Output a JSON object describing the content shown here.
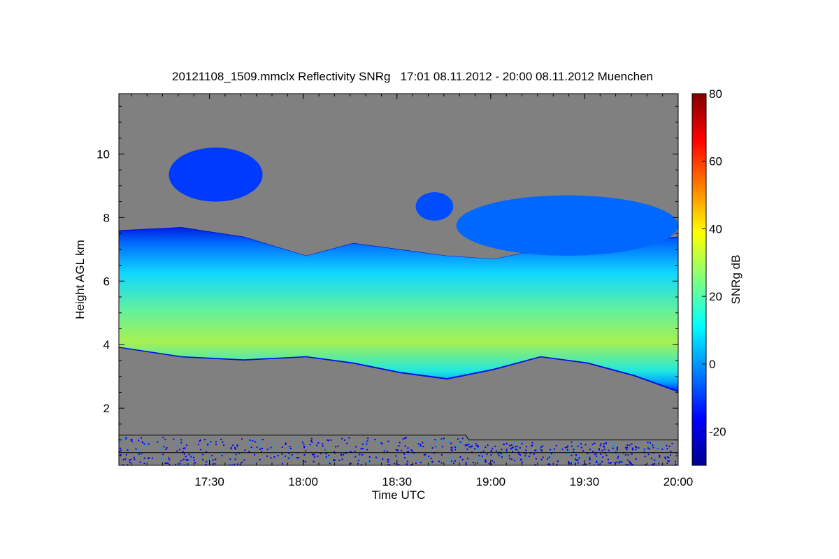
{
  "chart_data": {
    "type": "heatmap",
    "title": "20121108_1509.mmclx Reflectivity SNRg   17:01 08.11.2012 - 20:00 08.11.2012 Muenchen",
    "xlabel": "Time UTC",
    "ylabel": "Height AGL km",
    "colorbar_label": "SNRg dB",
    "x_range": [
      "17:01",
      "20:00"
    ],
    "x_ticks": [
      "17:30",
      "18:00",
      "18:30",
      "19:00",
      "19:30",
      "20:00"
    ],
    "x_tick_minutes": [
      29,
      59,
      89,
      119,
      149,
      179
    ],
    "ylim": [
      0.2,
      11.9
    ],
    "y_ticks": [
      2,
      4,
      6,
      8,
      10
    ],
    "clim": [
      -30,
      80
    ],
    "c_ticks": [
      -20,
      0,
      20,
      40,
      60,
      80
    ],
    "colormap": "jet",
    "background_color": "#808080",
    "main_cloud_layer": {
      "time_min": [
        0,
        20,
        40,
        60,
        75,
        90,
        105,
        120,
        135,
        150,
        165,
        179
      ],
      "top_km": [
        7.6,
        7.7,
        7.4,
        6.8,
        7.2,
        7.0,
        6.8,
        6.7,
        7.0,
        7.2,
        7.3,
        7.4
      ],
      "base_km": [
        3.9,
        3.6,
        3.5,
        3.6,
        3.4,
        3.1,
        2.9,
        3.2,
        3.6,
        3.4,
        3.0,
        2.5
      ],
      "peak_snr_db": [
        27,
        26,
        24,
        23,
        27,
        28,
        22,
        18,
        25,
        33,
        30,
        20
      ]
    },
    "upper_cloud_patches": [
      {
        "time_min": [
          16,
          46
        ],
        "height_km": [
          8.5,
          10.2
        ],
        "snr_db": -10
      },
      {
        "time_min": [
          95,
          107
        ],
        "height_km": [
          7.9,
          8.8
        ],
        "snr_db": -8
      },
      {
        "time_min": [
          108,
          179
        ],
        "height_km": [
          6.8,
          8.7
        ],
        "snr_db": -5
      }
    ],
    "lines": [
      {
        "time_min": [
          0,
          111,
          112,
          179
        ],
        "height_km": [
          1.15,
          1.15,
          1.0,
          1.0
        ]
      },
      {
        "time_min": [
          0,
          179
        ],
        "height_km": [
          0.6,
          0.6
        ]
      }
    ]
  }
}
